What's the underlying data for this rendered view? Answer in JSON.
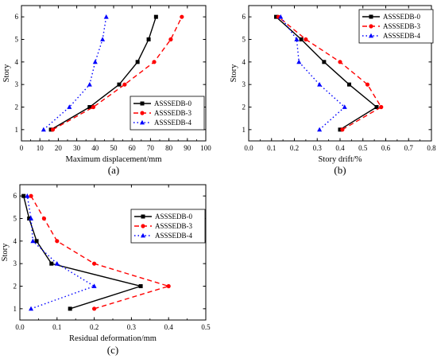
{
  "chart_data": [
    {
      "type": "line",
      "panel_label": "(a)",
      "xlabel": "Maximum displacement/mm",
      "ylabel": "Story",
      "xlim": [
        0,
        100
      ],
      "ylim": [
        0.5,
        6.5
      ],
      "xticks": [
        "0",
        "10",
        "20",
        "30",
        "40",
        "50",
        "60",
        "70",
        "80",
        "90",
        "100"
      ],
      "yticks": [
        "1",
        "2",
        "3",
        "4",
        "5",
        "6"
      ],
      "y": [
        1,
        2,
        3,
        4,
        5,
        6
      ],
      "grid": false,
      "legend_position": "lower-right",
      "series": [
        {
          "name": "ASSSEDB-0",
          "values": [
            16,
            37,
            53,
            63,
            69,
            73
          ]
        },
        {
          "name": "ASSSEDB-3",
          "values": [
            17,
            39,
            56,
            72,
            81,
            87
          ]
        },
        {
          "name": "ASSSEDB-4",
          "values": [
            12,
            26,
            37,
            40,
            44,
            46
          ]
        }
      ]
    },
    {
      "type": "line",
      "panel_label": "(b)",
      "xlabel": "Story drift/%",
      "ylabel": "Story",
      "xlim": [
        0,
        0.8
      ],
      "ylim": [
        0.5,
        6.5
      ],
      "xticks": [
        "0.0",
        "0.1",
        "0.2",
        "0.3",
        "0.4",
        "0.5",
        "0.6",
        "0.7",
        "0.8"
      ],
      "yticks": [
        "1",
        "2",
        "3",
        "4",
        "5",
        "6"
      ],
      "y": [
        1,
        2,
        3,
        4,
        5,
        6
      ],
      "grid": false,
      "legend_position": "top-right",
      "series": [
        {
          "name": "ASSSEDB-0",
          "values": [
            0.4,
            0.56,
            0.44,
            0.33,
            0.23,
            0.12
          ]
        },
        {
          "name": "ASSSEDB-3",
          "values": [
            0.41,
            0.58,
            0.52,
            0.4,
            0.25,
            0.13
          ]
        },
        {
          "name": "ASSSEDB-4",
          "values": [
            0.31,
            0.42,
            0.31,
            0.22,
            0.21,
            0.14
          ]
        }
      ]
    },
    {
      "type": "line",
      "panel_label": "(c)",
      "xlabel": "Residual deformation/mm",
      "ylabel": "Story",
      "xlim": [
        0,
        0.5
      ],
      "ylim": [
        0.5,
        6.5
      ],
      "xticks": [
        "0.0",
        "0.1",
        "0.2",
        "0.3",
        "0.4",
        "0.5"
      ],
      "yticks": [
        "1",
        "2",
        "3",
        "4",
        "5",
        "6"
      ],
      "y": [
        1,
        2,
        3,
        4,
        5,
        6
      ],
      "grid": false,
      "legend_position": "top-right",
      "series": [
        {
          "name": "ASSSEDB-0",
          "values": [
            0.135,
            0.325,
            0.085,
            0.045,
            0.025,
            0.01
          ]
        },
        {
          "name": "ASSSEDB-3",
          "values": [
            0.2,
            0.4,
            0.2,
            0.1,
            0.065,
            0.03
          ]
        },
        {
          "name": "ASSSEDB-4",
          "values": [
            0.03,
            0.2,
            0.1,
            0.035,
            0.03,
            0.02
          ]
        }
      ]
    }
  ],
  "series_styles": [
    {
      "color": "#000000",
      "dash": "",
      "marker": "square"
    },
    {
      "color": "#ff0000",
      "dash": "6,4",
      "marker": "circle"
    },
    {
      "color": "#0000ff",
      "dash": "1.5,3",
      "marker": "triangle"
    }
  ]
}
